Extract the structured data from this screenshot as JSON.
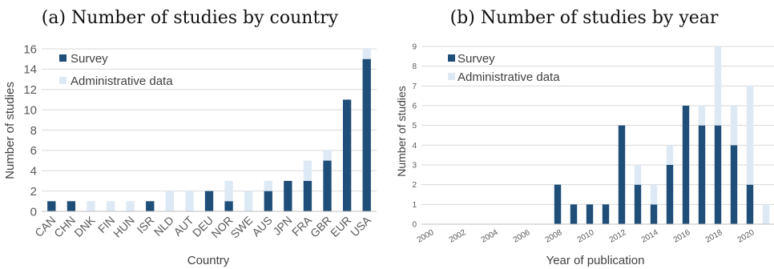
{
  "colors": {
    "survey": "#1f4e79",
    "admin": "#dde9f5",
    "grid": "#d9d9d9",
    "axis": "#bfbfbf",
    "text": "#595959"
  },
  "chart_data": [
    {
      "type": "bar",
      "stacked": true,
      "title": "(a) Number of studies by country",
      "xlabel": "Country",
      "ylabel": "Number of studies",
      "ylim": [
        0,
        16
      ],
      "yticks": [
        0,
        2,
        4,
        6,
        8,
        10,
        12,
        14,
        16
      ],
      "grid": true,
      "legend": "top-left",
      "categories": [
        "CAN",
        "CHN",
        "DNK",
        "FIN",
        "HUN",
        "ISR",
        "NLD",
        "AUT",
        "DEU",
        "NOR",
        "SWE",
        "AUS",
        "JPN",
        "FRA",
        "GBR",
        "EUR",
        "USA"
      ],
      "series": [
        {
          "name": "Survey",
          "values": [
            1,
            1,
            0,
            0,
            0,
            1,
            0,
            0,
            2,
            1,
            0,
            2,
            3,
            3,
            5,
            11,
            15
          ]
        },
        {
          "name": "Administrative data",
          "values": [
            0,
            0,
            1,
            1,
            1,
            0,
            2,
            2,
            0,
            2,
            2,
            1,
            0,
            2,
            1,
            0,
            1
          ]
        }
      ]
    },
    {
      "type": "bar",
      "stacked": true,
      "title": "(b) Number of studies by year",
      "xlabel": "Year of publication",
      "ylabel": "Number of studies",
      "ylim": [
        0,
        9
      ],
      "yticks": [
        0,
        1,
        2,
        3,
        4,
        5,
        6,
        7,
        8,
        9
      ],
      "grid": true,
      "legend": "top-left",
      "categories": [
        "2000",
        "2001",
        "2002",
        "2003",
        "2004",
        "2005",
        "2006",
        "2007",
        "2008",
        "2009",
        "2010",
        "2011",
        "2012",
        "2013",
        "2014",
        "2015",
        "2016",
        "2017",
        "2018",
        "2019",
        "2020",
        "2021"
      ],
      "tick_labels": [
        "2000",
        "",
        "2002",
        "",
        "2004",
        "",
        "2006",
        "",
        "2008",
        "",
        "2010",
        "",
        "2012",
        "",
        "2014",
        "",
        "2016",
        "",
        "2018",
        "",
        "2020",
        ""
      ],
      "series": [
        {
          "name": "Survey",
          "values": [
            0,
            0,
            0,
            0,
            0,
            0,
            0,
            0,
            2,
            1,
            1,
            1,
            5,
            2,
            1,
            3,
            6,
            5,
            5,
            4,
            2,
            0
          ]
        },
        {
          "name": "Administrative data",
          "values": [
            0,
            0,
            0,
            0,
            0,
            0,
            0,
            0,
            0,
            0,
            0,
            0,
            0,
            1,
            1,
            1,
            0,
            1,
            4,
            2,
            5,
            1
          ]
        }
      ]
    }
  ]
}
